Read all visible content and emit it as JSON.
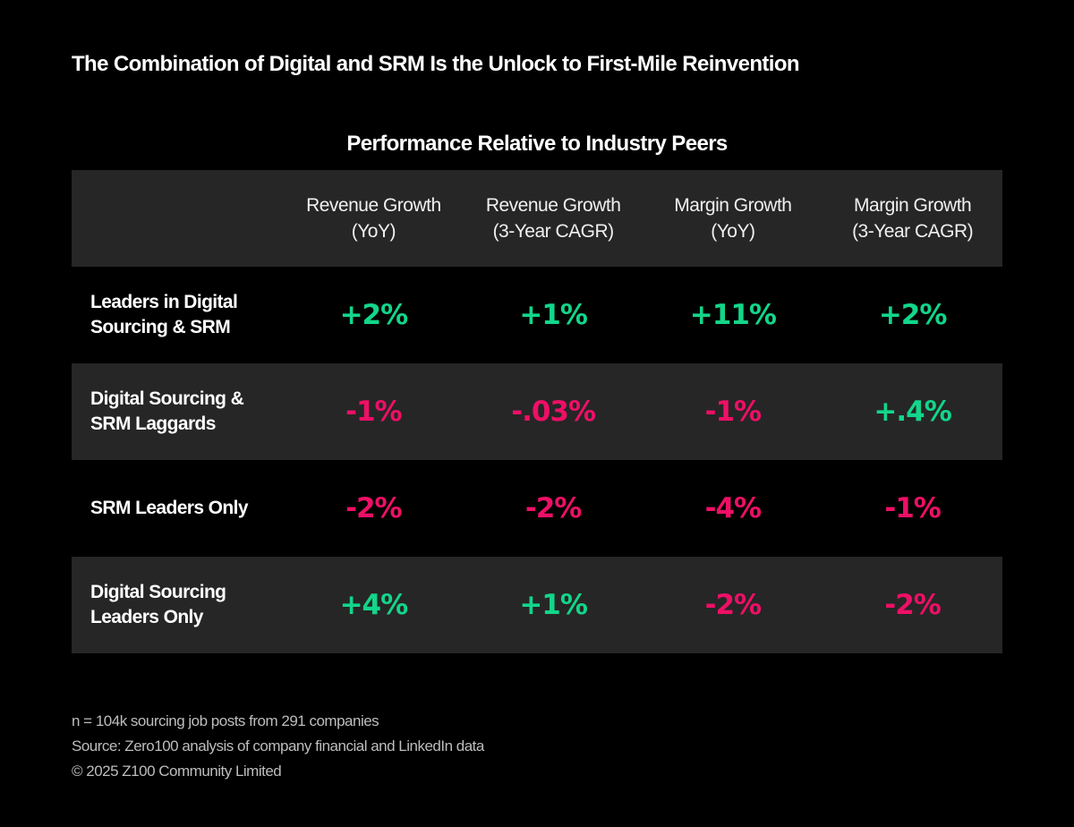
{
  "title": "The Combination of Digital and SRM Is the Unlock to First-Mile Reinvention",
  "colors": {
    "positive": "#12d68a",
    "negative": "#ee0f66",
    "row_shade": "#262626",
    "background": "#000000"
  },
  "chart_data": {
    "type": "table",
    "title": "Performance Relative to Industry Peers",
    "columns": [
      "Revenue Growth\n(YoY)",
      "Revenue Growth\n(3-Year CAGR)",
      "Margin Growth\n(YoY)",
      "Margin Growth\n(3-Year CAGR)"
    ],
    "rows": [
      {
        "label": "Leaders in Digital\nSourcing & SRM",
        "values": [
          "+2%",
          "+1%",
          "+11%",
          "+2%"
        ],
        "numeric": [
          2,
          1,
          11,
          2
        ]
      },
      {
        "label": "Digital Sourcing &\nSRM Laggards",
        "values": [
          "-1%",
          "-.03%",
          "-1%",
          "+.4%"
        ],
        "numeric": [
          -1,
          -0.03,
          -1,
          0.4
        ]
      },
      {
        "label": "SRM Leaders Only",
        "values": [
          "-2%",
          "-2%",
          "-4%",
          "-1%"
        ],
        "numeric": [
          -2,
          -2,
          -4,
          -1
        ]
      },
      {
        "label": "Digital Sourcing\nLeaders Only",
        "values": [
          "+4%",
          "+1%",
          "-2%",
          "-2%"
        ],
        "numeric": [
          4,
          1,
          -2,
          -2
        ]
      }
    ]
  },
  "footer": {
    "note": "n = 104k sourcing job posts from 291 companies",
    "source": "Source: Zero100 analysis of company financial and LinkedIn data",
    "copyright": "© 2025 Z100 Community Limited"
  }
}
